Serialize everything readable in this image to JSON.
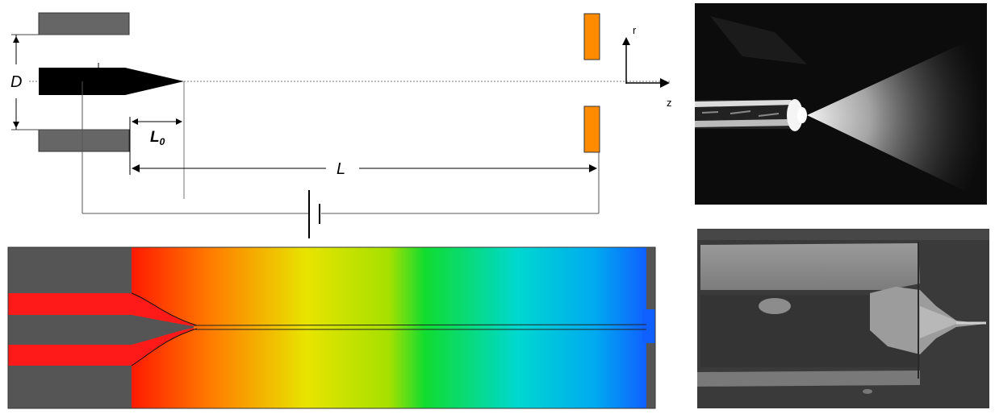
{
  "schematic": {
    "diameter_label": "D",
    "gap_label": "L",
    "gap_subscript": "0",
    "distance_label": "L",
    "radial_axis_label": "r",
    "axial_axis_label": "z"
  },
  "colors": {
    "electrode": "#5f5f5f",
    "needle": "#000000",
    "ring_electrode": "#ff8c00",
    "liquid": "#ff1a1a",
    "sim_wall": "#555555",
    "gradient": [
      "#ff1a00",
      "#ff7f00",
      "#e6e600",
      "#9ae000",
      "#00dd40",
      "#00d8d8",
      "#1070ff"
    ]
  },
  "photos": {
    "top": "spray-photograph",
    "bottom": "meniscus-photograph"
  }
}
